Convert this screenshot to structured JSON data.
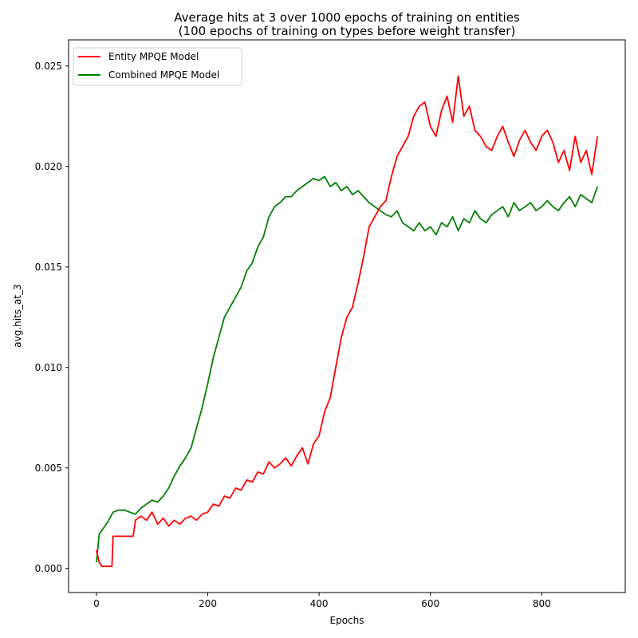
{
  "chart_data": {
    "type": "line",
    "title": "Average hits at 3 over 1000 epochs of training on entities",
    "subtitle": "(100 epochs of training on types before weight transfer)",
    "xlabel": "Epochs",
    "ylabel": "avg.hits_at_3",
    "xlim": [
      -50,
      950
    ],
    "ylim": [
      -0.0012,
      0.0263
    ],
    "xticks": [
      0,
      200,
      400,
      600,
      800
    ],
    "xtick_labels": [
      "0",
      "200",
      "400",
      "600",
      "800"
    ],
    "yticks": [
      0.0,
      0.005,
      0.01,
      0.015,
      0.02,
      0.025
    ],
    "ytick_labels": [
      "0.000",
      "0.005",
      "0.010",
      "0.015",
      "0.020",
      "0.025"
    ],
    "grid": false,
    "legend_position": "top-left",
    "series": [
      {
        "name": "Entity MPQE Model",
        "color": "#ff0000",
        "x": [
          0,
          5,
          10,
          20,
          28,
          30,
          40,
          50,
          60,
          66,
          70,
          80,
          90,
          100,
          110,
          120,
          130,
          140,
          150,
          160,
          170,
          180,
          190,
          200,
          210,
          220,
          230,
          240,
          250,
          260,
          270,
          280,
          290,
          300,
          310,
          320,
          330,
          340,
          350,
          360,
          370,
          380,
          390,
          400,
          410,
          420,
          430,
          440,
          450,
          460,
          470,
          480,
          490,
          500,
          510,
          520,
          530,
          540,
          550,
          560,
          570,
          580,
          590,
          600,
          610,
          620,
          630,
          640,
          650,
          660,
          670,
          680,
          690,
          700,
          710,
          720,
          730,
          740,
          750,
          760,
          770,
          780,
          790,
          800,
          810,
          820,
          830,
          840,
          850,
          860,
          870,
          880,
          890,
          900
        ],
        "y": [
          0.0009,
          0.0003,
          0.0001,
          0.0001,
          0.0001,
          0.0016,
          0.0016,
          0.0016,
          0.0016,
          0.0016,
          0.0024,
          0.0026,
          0.0024,
          0.0028,
          0.0022,
          0.0025,
          0.0021,
          0.0024,
          0.0022,
          0.0025,
          0.0026,
          0.0024,
          0.0027,
          0.0028,
          0.0032,
          0.0031,
          0.0036,
          0.0035,
          0.004,
          0.0039,
          0.0044,
          0.0043,
          0.0048,
          0.0047,
          0.0053,
          0.005,
          0.0052,
          0.0055,
          0.0051,
          0.0056,
          0.006,
          0.0052,
          0.0062,
          0.0066,
          0.0078,
          0.0085,
          0.01,
          0.0115,
          0.0125,
          0.013,
          0.0142,
          0.0155,
          0.017,
          0.0175,
          0.018,
          0.0183,
          0.0195,
          0.0205,
          0.021,
          0.0215,
          0.0225,
          0.023,
          0.0232,
          0.022,
          0.0215,
          0.0228,
          0.0235,
          0.0222,
          0.0245,
          0.0225,
          0.023,
          0.0218,
          0.0215,
          0.021,
          0.0208,
          0.0215,
          0.022,
          0.0212,
          0.0205,
          0.0213,
          0.0218,
          0.0212,
          0.0208,
          0.0215,
          0.0218,
          0.0212,
          0.0202,
          0.0208,
          0.0198,
          0.0215,
          0.0202,
          0.0208,
          0.0196,
          0.0215
        ]
      },
      {
        "name": "Combined MPQE Model",
        "color": "#008000",
        "x": [
          0,
          5,
          10,
          20,
          30,
          40,
          50,
          60,
          70,
          80,
          90,
          100,
          110,
          120,
          130,
          140,
          150,
          160,
          170,
          180,
          190,
          200,
          210,
          220,
          230,
          240,
          250,
          260,
          270,
          280,
          290,
          300,
          310,
          320,
          330,
          340,
          350,
          360,
          370,
          380,
          390,
          400,
          410,
          420,
          430,
          440,
          450,
          460,
          470,
          480,
          490,
          500,
          510,
          520,
          530,
          540,
          550,
          560,
          570,
          580,
          590,
          600,
          610,
          620,
          630,
          640,
          650,
          660,
          670,
          680,
          690,
          700,
          710,
          720,
          730,
          740,
          750,
          760,
          770,
          780,
          790,
          800,
          810,
          820,
          830,
          840,
          850,
          860,
          870,
          880,
          890,
          900
        ],
        "y": [
          0.0003,
          0.0017,
          0.0019,
          0.0023,
          0.0028,
          0.0029,
          0.0029,
          0.0028,
          0.0027,
          0.003,
          0.0032,
          0.0034,
          0.0033,
          0.0036,
          0.004,
          0.0046,
          0.0051,
          0.0055,
          0.006,
          0.007,
          0.008,
          0.0092,
          0.0105,
          0.0115,
          0.0125,
          0.013,
          0.0135,
          0.014,
          0.0148,
          0.0152,
          0.016,
          0.0165,
          0.0175,
          0.018,
          0.0182,
          0.0185,
          0.0185,
          0.0188,
          0.019,
          0.0192,
          0.0194,
          0.0193,
          0.0195,
          0.019,
          0.0192,
          0.0188,
          0.019,
          0.0186,
          0.0188,
          0.0185,
          0.0182,
          0.018,
          0.0178,
          0.0176,
          0.0175,
          0.0178,
          0.0172,
          0.017,
          0.0168,
          0.0172,
          0.0168,
          0.017,
          0.0166,
          0.0172,
          0.017,
          0.0175,
          0.0168,
          0.0174,
          0.0172,
          0.0178,
          0.0174,
          0.0172,
          0.0176,
          0.0178,
          0.018,
          0.0175,
          0.0182,
          0.0178,
          0.018,
          0.0182,
          0.0178,
          0.018,
          0.0183,
          0.018,
          0.0178,
          0.0182,
          0.0185,
          0.018,
          0.0186,
          0.0184,
          0.0182,
          0.019
        ]
      }
    ]
  }
}
